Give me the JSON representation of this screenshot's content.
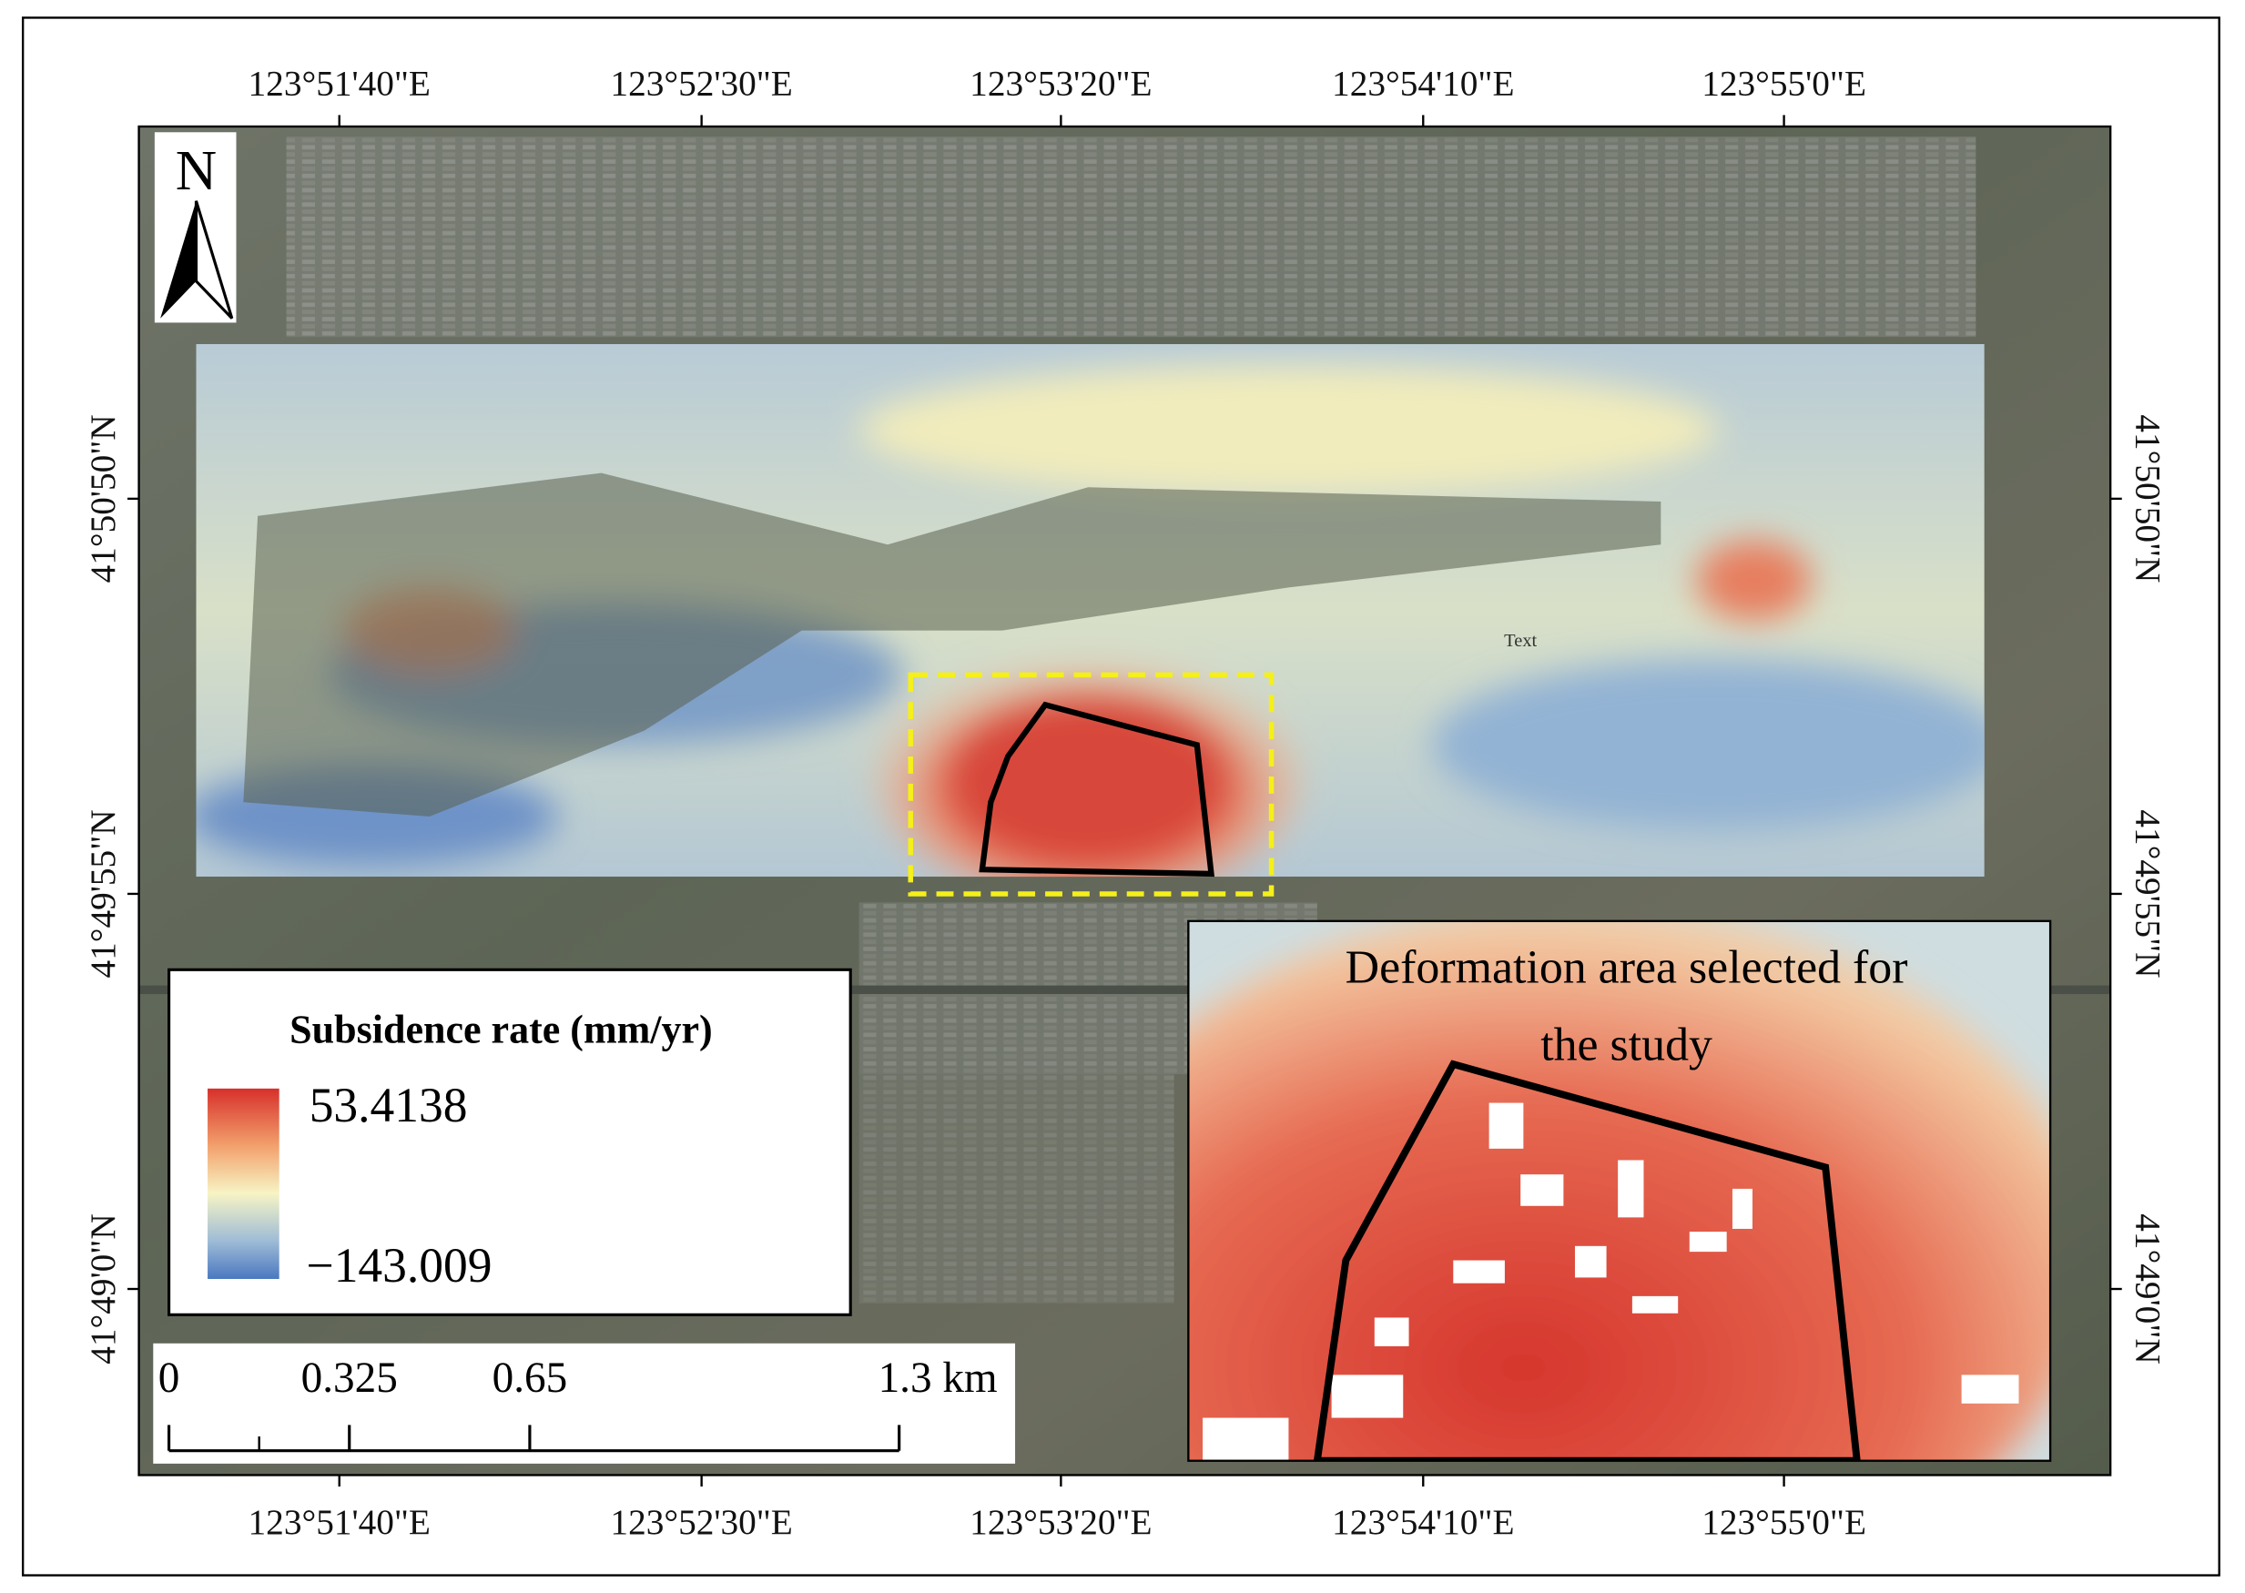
{
  "map": {
    "x_labels": [
      "123°51'40\"E",
      "123°52'30\"E",
      "123°53'20\"E",
      "123°54'10\"E",
      "123°55'0\"E"
    ],
    "y_labels": [
      "41°50'50\"N",
      "41°49'55\"N",
      "41°49'0\"N"
    ],
    "north": "N",
    "annotation": "Text",
    "legend": {
      "title": "Subsidence rate (mm/yr)",
      "max": "53.4138",
      "min": "−143.009"
    },
    "scale_bar": {
      "labels": [
        "0",
        "0.325",
        "0.65",
        "1.3 km"
      ]
    },
    "inset": {
      "title_lines": [
        "Deformation area selected for",
        "the study"
      ]
    }
  }
}
